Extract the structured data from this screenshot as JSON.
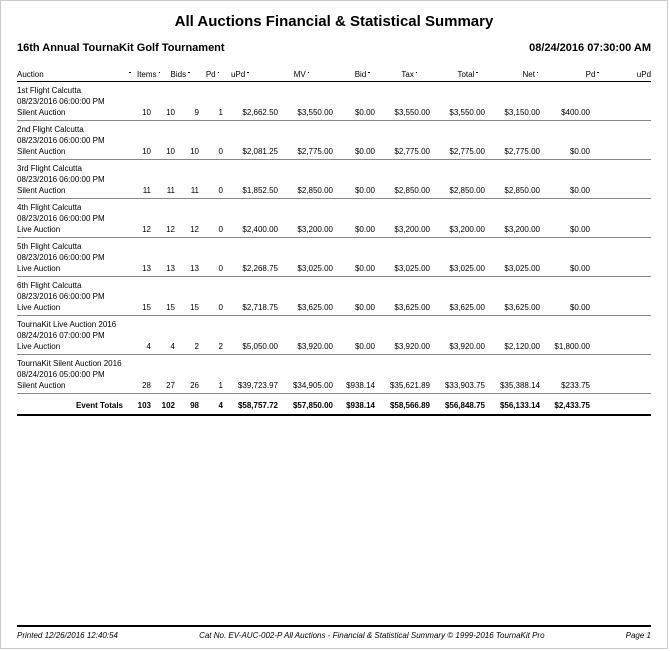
{
  "title": "All Auctions Financial & Statistical Summary",
  "event_name": "16th Annual TournaKit Golf Tournament",
  "event_datetime": "08/24/2016 07:30:00 AM",
  "columns": {
    "auction": "Auction",
    "items": "Items",
    "bids": "Bids",
    "pd": "Pd",
    "upd": "uPd",
    "mv": "MV",
    "bid": "Bid",
    "tax": "Tax",
    "total": "Total",
    "net": "Net",
    "pd2": "Pd",
    "upd2": "uPd"
  },
  "rows": [
    {
      "name": "1st Flight Calcutta",
      "dt": "08/23/2016 06:00:00 PM",
      "type": "Silent Auction",
      "items": "10",
      "bids": "10",
      "pd": "9",
      "upd": "1",
      "mv": "$2,662.50",
      "bid": "$3,550.00",
      "tax": "$0.00",
      "total": "$3,550.00",
      "net": "$3,550.00",
      "pd2": "$3,150.00",
      "upd2": "$400.00"
    },
    {
      "name": "2nd Flight Calcutta",
      "dt": "08/23/2016 06:00:00 PM",
      "type": "Silent Auction",
      "items": "10",
      "bids": "10",
      "pd": "10",
      "upd": "0",
      "mv": "$2,081.25",
      "bid": "$2,775.00",
      "tax": "$0.00",
      "total": "$2,775.00",
      "net": "$2,775.00",
      "pd2": "$2,775.00",
      "upd2": "$0.00"
    },
    {
      "name": "3rd Flight Calcutta",
      "dt": "08/23/2016 06:00:00 PM",
      "type": "Silent Auction",
      "items": "11",
      "bids": "11",
      "pd": "11",
      "upd": "0",
      "mv": "$1,852.50",
      "bid": "$2,850.00",
      "tax": "$0.00",
      "total": "$2,850.00",
      "net": "$2,850.00",
      "pd2": "$2,850.00",
      "upd2": "$0.00"
    },
    {
      "name": "4th Flight Calcutta",
      "dt": "08/23/2016 06:00:00 PM",
      "type": "Live Auction",
      "items": "12",
      "bids": "12",
      "pd": "12",
      "upd": "0",
      "mv": "$2,400.00",
      "bid": "$3,200.00",
      "tax": "$0.00",
      "total": "$3,200.00",
      "net": "$3,200.00",
      "pd2": "$3,200.00",
      "upd2": "$0.00"
    },
    {
      "name": "5th Flight Calcutta",
      "dt": "08/23/2016 06:00:00 PM",
      "type": "Live Auction",
      "items": "13",
      "bids": "13",
      "pd": "13",
      "upd": "0",
      "mv": "$2,268.75",
      "bid": "$3,025.00",
      "tax": "$0.00",
      "total": "$3,025.00",
      "net": "$3,025.00",
      "pd2": "$3,025.00",
      "upd2": "$0.00"
    },
    {
      "name": "6th Flight Calcutta",
      "dt": "08/23/2016 06:00:00 PM",
      "type": "Live Auction",
      "items": "15",
      "bids": "15",
      "pd": "15",
      "upd": "0",
      "mv": "$2,718.75",
      "bid": "$3,625.00",
      "tax": "$0.00",
      "total": "$3,625.00",
      "net": "$3,625.00",
      "pd2": "$3,625.00",
      "upd2": "$0.00"
    },
    {
      "name": "TournaKit Live Auction 2016",
      "dt": "08/24/2016 07:00:00 PM",
      "type": "Live Auction",
      "items": "4",
      "bids": "4",
      "pd": "2",
      "upd": "2",
      "mv": "$5,050.00",
      "bid": "$3,920.00",
      "tax": "$0.00",
      "total": "$3,920.00",
      "net": "$3,920.00",
      "pd2": "$2,120.00",
      "upd2": "$1,800.00"
    },
    {
      "name": "TournaKit Silent Auction 2016",
      "dt": "08/24/2016 05:00:00 PM",
      "type": "Silent Auction",
      "items": "28",
      "bids": "27",
      "pd": "26",
      "upd": "1",
      "mv": "$39,723.97",
      "bid": "$34,905.00",
      "tax": "$938.14",
      "total": "$35,621.89",
      "net": "$33,903.75",
      "pd2": "$35,388.14",
      "upd2": "$233.75"
    }
  ],
  "totals": {
    "label": "Event Totals",
    "items": "103",
    "bids": "102",
    "pd": "98",
    "upd": "4",
    "mv": "$58,757.72",
    "bid": "$57,850.00",
    "tax": "$938.14",
    "total": "$58,566.89",
    "net": "$56,848.75",
    "pd2": "$56,133.14",
    "upd2": "$2,433.75"
  },
  "footer": {
    "printed": "Printed  12/26/2016 12:40:54",
    "catalog": "Cat No. EV-AUC-002-P    All Auctions - Financial & Statistical Summary © 1999-2016 TournaKit Pro",
    "page": "Page 1"
  }
}
